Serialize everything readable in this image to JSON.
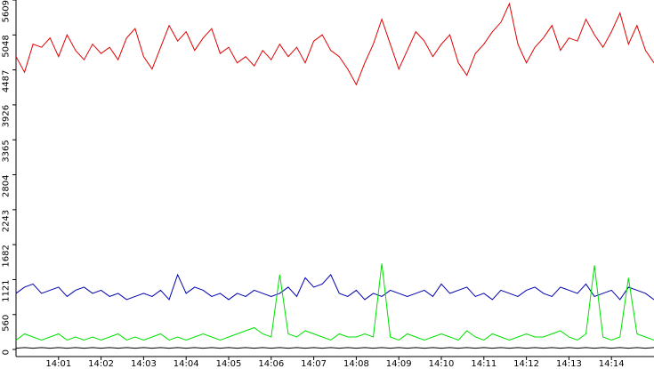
{
  "chart_data": {
    "type": "line",
    "x": [
      0,
      0.2,
      0.4,
      0.6,
      0.8,
      1,
      1.2,
      1.4,
      1.6,
      1.8,
      2,
      2.2,
      2.4,
      2.6,
      2.8,
      3,
      3.2,
      3.4,
      3.6,
      3.8,
      4,
      4.2,
      4.4,
      4.6,
      4.8,
      5,
      5.2,
      5.4,
      5.6,
      5.8,
      6,
      6.2,
      6.4,
      6.6,
      6.8,
      7,
      7.2,
      7.4,
      7.6,
      7.8,
      8,
      8.2,
      8.4,
      8.6,
      8.8,
      9,
      9.2,
      9.4,
      9.6,
      9.8,
      10,
      10.2,
      10.4,
      10.6,
      10.8,
      11,
      11.2,
      11.4,
      11.6,
      11.8,
      12,
      12.2,
      12.4,
      12.6,
      12.8,
      13,
      13.2,
      13.4,
      13.6,
      13.8,
      14,
      14.2,
      14.4,
      14.6,
      14.8,
      15
    ],
    "xlim": [
      0,
      15
    ],
    "xticks": [
      {
        "value": 1,
        "label": "14:01"
      },
      {
        "value": 2,
        "label": "14:02"
      },
      {
        "value": 3,
        "label": "14:03"
      },
      {
        "value": 4,
        "label": "14:04"
      },
      {
        "value": 5,
        "label": "14:05"
      },
      {
        "value": 6,
        "label": "14:06"
      },
      {
        "value": 7,
        "label": "14:07"
      },
      {
        "value": 8,
        "label": "14:08"
      },
      {
        "value": 9,
        "label": "14:09"
      },
      {
        "value": 10,
        "label": "14:10"
      },
      {
        "value": 11,
        "label": "14:11"
      },
      {
        "value": 12,
        "label": "14:12"
      },
      {
        "value": 13,
        "label": "14:13"
      },
      {
        "value": 14,
        "label": "14:14"
      }
    ],
    "ylim": [
      0,
      5609
    ],
    "yticks": [
      0,
      560,
      1121,
      1682,
      2243,
      2804,
      3365,
      3926,
      4487,
      5048,
      5609
    ],
    "grid": false,
    "series": [
      {
        "color": "#e00000",
        "values": [
          4700,
          4450,
          4900,
          4850,
          5000,
          4700,
          5050,
          4800,
          4650,
          4900,
          4750,
          4850,
          4650,
          5000,
          5150,
          4700,
          4500,
          4850,
          5200,
          4950,
          5100,
          4800,
          5000,
          5150,
          4750,
          4850,
          4600,
          4700,
          4550,
          4800,
          4650,
          4900,
          4700,
          4850,
          4600,
          4950,
          5050,
          4800,
          4700,
          4500,
          4250,
          4600,
          4900,
          5300,
          4900,
          4500,
          4800,
          5100,
          4950,
          4700,
          4900,
          5050,
          4600,
          4400,
          4750,
          4900,
          5100,
          5250,
          5550,
          4900,
          4600,
          4850,
          5000,
          5200,
          4800,
          5000,
          4950,
          5300,
          5050,
          4850,
          5100,
          5400,
          4900,
          5200,
          4800,
          4600
        ]
      },
      {
        "color": "#0000b0",
        "values": [
          900,
          1000,
          1050,
          900,
          950,
          1000,
          850,
          950,
          1000,
          900,
          950,
          850,
          900,
          800,
          850,
          900,
          850,
          950,
          800,
          1200,
          900,
          1000,
          950,
          850,
          900,
          800,
          900,
          850,
          950,
          900,
          850,
          900,
          1000,
          850,
          1150,
          1000,
          1050,
          1200,
          900,
          850,
          950,
          800,
          900,
          850,
          950,
          900,
          850,
          900,
          950,
          850,
          1050,
          900,
          950,
          1000,
          850,
          900,
          800,
          950,
          900,
          850,
          950,
          1000,
          900,
          850,
          1000,
          950,
          900,
          1050,
          850,
          900,
          950,
          800,
          1000,
          950,
          900,
          800
        ]
      },
      {
        "color": "#00e000",
        "values": [
          150,
          250,
          200,
          150,
          200,
          250,
          150,
          200,
          150,
          200,
          150,
          200,
          250,
          150,
          200,
          150,
          200,
          250,
          150,
          200,
          150,
          200,
          250,
          200,
          150,
          200,
          250,
          300,
          350,
          250,
          200,
          1200,
          250,
          200,
          300,
          250,
          200,
          150,
          250,
          200,
          200,
          250,
          200,
          1380,
          200,
          150,
          250,
          200,
          150,
          200,
          250,
          200,
          150,
          300,
          200,
          150,
          250,
          200,
          150,
          200,
          250,
          200,
          200,
          250,
          300,
          200,
          150,
          250,
          1350,
          200,
          150,
          200,
          1150,
          250,
          200,
          150
        ]
      },
      {
        "color": "#000000",
        "values": [
          20,
          30,
          20,
          30,
          20,
          30,
          20,
          30,
          20,
          30,
          20,
          30,
          20,
          30,
          20,
          30,
          20,
          30,
          20,
          30,
          20,
          30,
          20,
          30,
          20,
          30,
          20,
          30,
          20,
          30,
          20,
          30,
          20,
          30,
          20,
          30,
          20,
          30,
          20,
          30,
          20,
          30,
          20,
          30,
          20,
          30,
          20,
          30,
          20,
          30,
          20,
          30,
          20,
          30,
          20,
          30,
          20,
          30,
          20,
          30,
          20,
          30,
          20,
          30,
          20,
          30,
          20,
          30,
          20,
          30,
          20,
          30,
          20,
          30,
          20,
          30
        ]
      }
    ]
  }
}
